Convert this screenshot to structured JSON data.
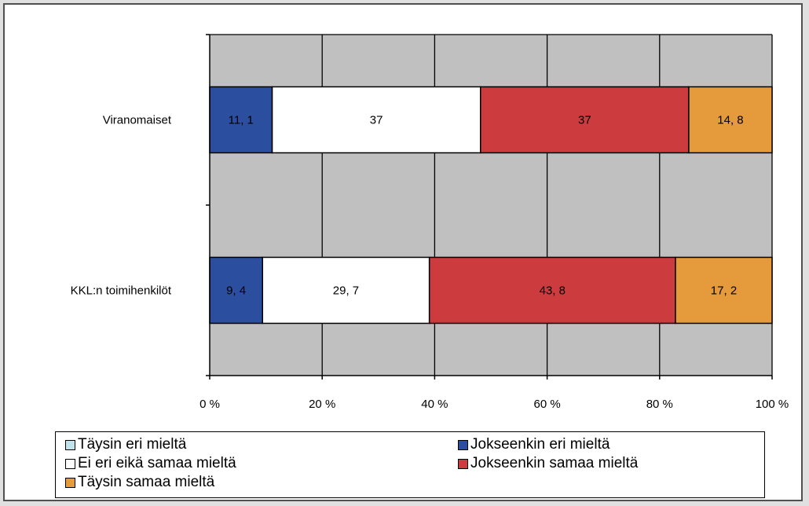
{
  "chart_data": {
    "type": "bar",
    "orientation": "horizontal",
    "stacked": true,
    "percent_stacked": true,
    "categories": [
      "Viranomaiset",
      "KKL:n toimihenkilöt"
    ],
    "series": [
      {
        "name": "Täysin eri mieltä",
        "color": "#bfe3ea",
        "values": [
          0,
          0
        ],
        "labels": [
          "",
          ""
        ]
      },
      {
        "name": "Jokseenkin eri mieltä",
        "color": "#2b4f9e",
        "values": [
          11.1,
          9.4
        ],
        "labels": [
          "11, 1",
          "9, 4"
        ]
      },
      {
        "name": "Ei eri eikä samaa mieltä",
        "color": "#ffffff",
        "values": [
          37,
          29.7
        ],
        "labels": [
          "37",
          "29, 7"
        ]
      },
      {
        "name": "Jokseenkin samaa mieltä",
        "color": "#cc3b3e",
        "values": [
          37,
          43.8
        ],
        "labels": [
          "37",
          "43, 8"
        ]
      },
      {
        "name": "Täysin samaa mieltä",
        "color": "#e59a3c",
        "values": [
          14.8,
          17.2
        ],
        "labels": [
          "14, 8",
          "17, 2"
        ]
      }
    ],
    "xlim": [
      0,
      100
    ],
    "x_ticks": [
      "0 %",
      "20 %",
      "40 %",
      "60 %",
      "80 %",
      "100 %"
    ],
    "grid": true,
    "plot_background": "#c0c0c0",
    "legend": "bottom"
  }
}
